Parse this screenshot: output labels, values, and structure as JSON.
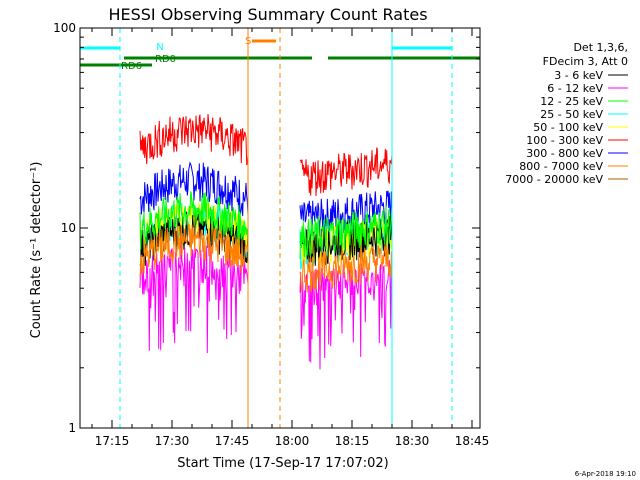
{
  "chart_data": {
    "type": "line",
    "title": "HESSI Observing Summary Count Rates",
    "xlabel": "Start Time (17-Sep-17 17:07:02)",
    "ylabel": "Count Rate (s⁻¹ detector⁻¹)",
    "yscale": "log",
    "ylim": [
      1,
      100
    ],
    "xlim": [
      "17:07",
      "18:47"
    ],
    "x_ticks": [
      "17:15",
      "17:30",
      "17:45",
      "18:00",
      "18:15",
      "18:30",
      "18:45"
    ],
    "y_ticks": [
      "1",
      "10",
      "100"
    ],
    "grid": false,
    "legend_position": "right",
    "legend_header": [
      "Det 1,3,6,",
      "FDecim 3, Att 0"
    ],
    "series": [
      {
        "name": "3 - 6 keV",
        "color": "#000000",
        "level_a": 8.0,
        "level_b": 8.0
      },
      {
        "name": "6 - 12 keV",
        "color": "#ff00ff",
        "level_a": 5.5,
        "level_b": 5.0
      },
      {
        "name": "12 - 25 keV",
        "color": "#00ff00",
        "level_a": 10.0,
        "level_b": 9.0
      },
      {
        "name": "25 - 50 keV",
        "color": "#00ffff",
        "level_a": 9.0,
        "level_b": 8.0
      },
      {
        "name": "50 - 100 keV",
        "color": "#ffff00",
        "level_a": 9.0,
        "level_b": 8.0
      },
      {
        "name": "100 - 300 keV",
        "color": "#ff0000",
        "level_a": 25.0,
        "level_b": 18.0
      },
      {
        "name": "300 - 800 keV",
        "color": "#0000ff",
        "level_a": 14.0,
        "level_b": 11.0
      },
      {
        "name": "800 - 7000 keV",
        "color": "#ff8000",
        "level_a": 7.0,
        "level_b": 6.0
      },
      {
        "name": "7000 - 20000 keV",
        "color": "#a06000",
        "level_a": 0,
        "level_b": 0
      }
    ],
    "data_segments": [
      {
        "start": "17:22",
        "end": "17:49"
      },
      {
        "start": "18:02",
        "end": "18:25"
      }
    ],
    "markers": [
      {
        "label": "N",
        "color": "#00ffff"
      },
      {
        "label": "RD0",
        "color": "#008000"
      },
      {
        "label": "RD6",
        "color": "#008000"
      },
      {
        "label": "S",
        "color": "#ff8000"
      }
    ],
    "flag_bars": [
      {
        "name": "night",
        "color": "#00ffff",
        "segments": [
          [
            "17:07",
            "17:17"
          ],
          [
            "18:25",
            "18:40"
          ]
        ]
      },
      {
        "name": "rd0",
        "color": "#008000",
        "segments": [
          [
            "17:18",
            "18:05"
          ],
          [
            "18:09",
            "18:47"
          ]
        ]
      },
      {
        "name": "rd6",
        "color": "#008000",
        "segments": [
          [
            "17:07",
            "17:25"
          ]
        ]
      },
      {
        "name": "saa",
        "color": "#ff8000",
        "segments": [
          [
            "17:50",
            "17:56"
          ]
        ]
      }
    ],
    "vertical_lines": [
      {
        "time": "17:07",
        "color": "#00ffff",
        "dashed": false
      },
      {
        "time": "17:17",
        "color": "#00ffff",
        "dashed": true
      },
      {
        "time": "17:49",
        "color": "#ff8000",
        "dashed": false
      },
      {
        "time": "17:57",
        "color": "#ff8000",
        "dashed": true
      },
      {
        "time": "18:25",
        "color": "#00ffff",
        "dashed": false
      },
      {
        "time": "18:40",
        "color": "#00ffff",
        "dashed": true
      }
    ]
  },
  "footer": {
    "timestamp": "6-Apr-2018 19:10"
  }
}
